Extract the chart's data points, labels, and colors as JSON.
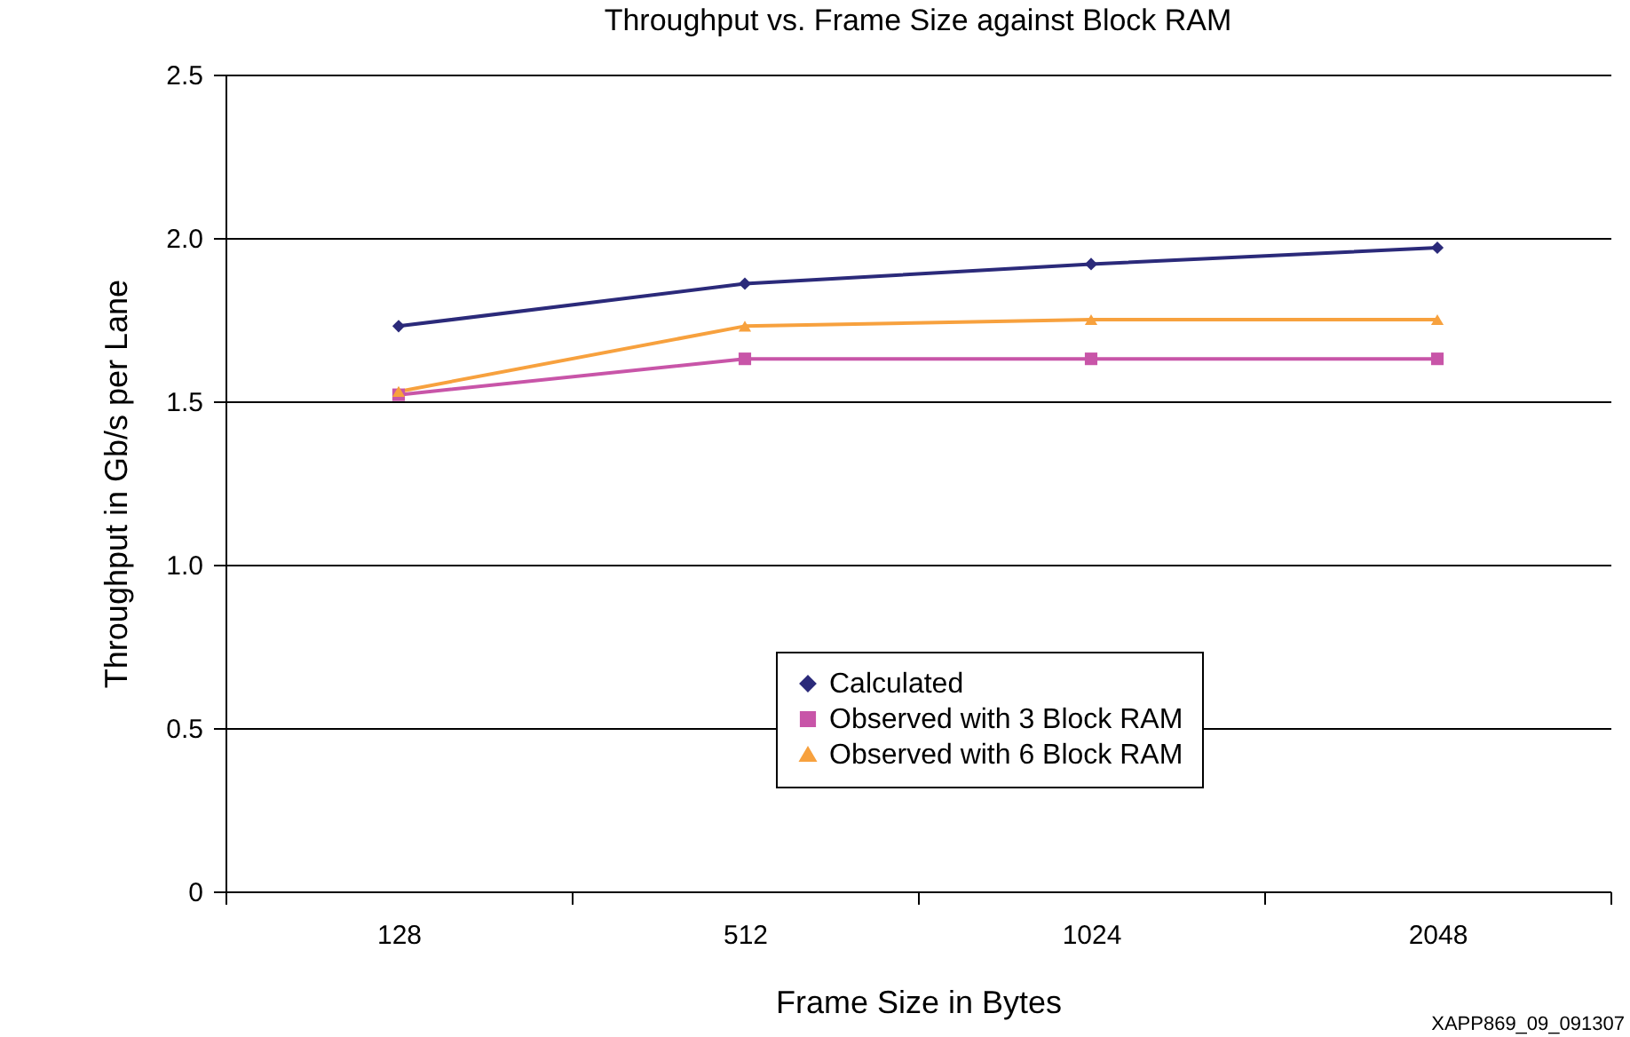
{
  "chart_data": {
    "type": "line",
    "title": "Throughput vs. Frame Size against Block RAM",
    "xlabel": "Frame Size in Bytes",
    "ylabel": "Throughput in Gb/s per Lane",
    "categories": [
      "128",
      "512",
      "1024",
      "2048"
    ],
    "series": [
      {
        "name": "Calculated",
        "color": "#2b2a7a",
        "marker": "diamond",
        "values": [
          1.73,
          1.86,
          1.92,
          1.97
        ]
      },
      {
        "name": "Observed with 3 Block RAM",
        "color": "#c855a8",
        "marker": "square",
        "values": [
          1.52,
          1.63,
          1.63,
          1.63
        ]
      },
      {
        "name": "Observed with 6 Block RAM",
        "color": "#f7a13e",
        "marker": "triangle",
        "values": [
          1.53,
          1.73,
          1.75,
          1.75
        ]
      }
    ],
    "ylim": [
      0,
      2.5
    ],
    "yticks": [
      0,
      0.5,
      {
        "value": 1,
        "label": "1.0"
      },
      1.5,
      {
        "value": 2,
        "label": "2.0"
      },
      2.5
    ],
    "grid": "y",
    "legend": "bottom",
    "line_style": "solid",
    "annotations": [
      "XAPP869_09_091307"
    ]
  }
}
